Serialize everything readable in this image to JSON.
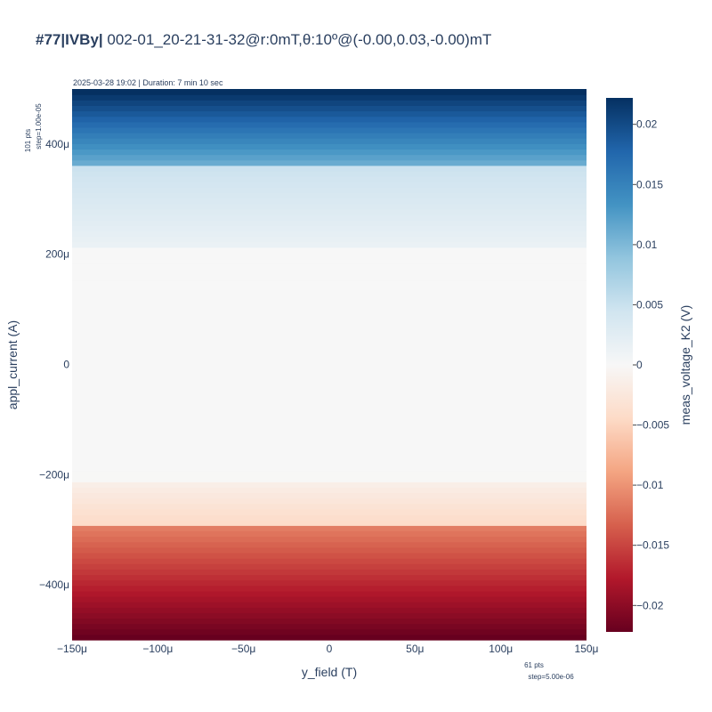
{
  "chart_data": {
    "type": "heatmap",
    "title_bold": "#77|IVBy|",
    "title_rest": " 002-01_20-21-31-32@r:0mT,θ:10º@(-0.00,0.03,-0.00)mT",
    "subtitle": "2025-03-28 19:02 | Duration: 7 min 10 sec",
    "xlabel": "y_field (T)",
    "ylabel": "appl_current (A)",
    "colorbar_title": "meas_voltage_K2 (V)",
    "x_points_note": "61 pts",
    "x_step_note": "step=5.00e-06",
    "y_points_note": "101 pts",
    "y_step_note": "step=1.00e-05",
    "x_range": [
      -0.00015,
      0.00015
    ],
    "y_range": [
      -0.0005,
      0.0005
    ],
    "x_count": 61,
    "y_count": 101,
    "z_range": [
      -0.0222,
      0.0222
    ],
    "x_ticks": [
      -0.00015,
      -0.0001,
      -5e-05,
      0,
      5e-05,
      0.0001,
      0.00015
    ],
    "x_tick_labels": [
      "−150μ",
      "−100μ",
      "−50μ",
      "0",
      "50μ",
      "100μ",
      "150μ"
    ],
    "y_ticks": [
      -0.0004,
      -0.0002,
      0,
      0.0002,
      0.0004
    ],
    "y_tick_labels": [
      "−400μ",
      "−200μ",
      "0",
      "200μ",
      "400μ"
    ],
    "colorbar_ticks": [
      -0.02,
      -0.015,
      -0.01,
      -0.005,
      0,
      0.005,
      0.01,
      0.015,
      0.02
    ],
    "colorbar_tick_labels": [
      "−0.02",
      "−0.015",
      "−0.01",
      "−0.005",
      "0",
      "0.005",
      "0.01",
      "0.015",
      "0.02"
    ],
    "colorscale": "RdBu",
    "row_profile": {
      "current_A": [
        -0.0005,
        -0.0003,
        -0.00029,
        -0.00022,
        -0.00021,
        0.00021,
        0.00022,
        0.00036,
        0.00037,
        0.0005
      ],
      "voltage_V": [
        -0.0222,
        -0.0115,
        -0.0043,
        -0.0015,
        -5e-05,
        5e-05,
        0.0015,
        0.0048,
        0.0112,
        0.0222
      ]
    }
  }
}
